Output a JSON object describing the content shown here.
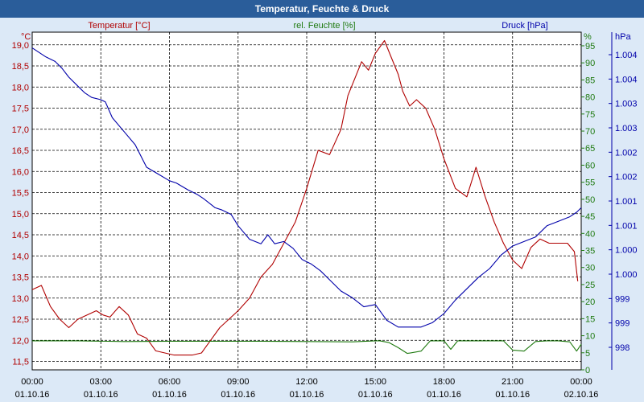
{
  "window": {
    "title": "Temperatur, Feuchte & Druck"
  },
  "colors": {
    "temperature": "#b00000",
    "humidity": "#1f7a10",
    "pressure": "#0000aa",
    "background": "#dce9f7",
    "plot": "#ffffff"
  },
  "chart_data": {
    "type": "line",
    "title": "Temperatur, Feuchte & Druck",
    "legend": [
      "Temperatur [°C]",
      "rel. Feuchte [%]",
      "Druck [hPa]"
    ],
    "axes": {
      "temperature": {
        "unit": "°C",
        "range": [
          11.3,
          19.3
        ],
        "ticks": [
          "11,5",
          "12,0",
          "12,5",
          "13,0",
          "13,5",
          "14,0",
          "14,5",
          "15,0",
          "15,5",
          "16,0",
          "16,5",
          "17,0",
          "17,5",
          "18,0",
          "18,5",
          "19,0"
        ]
      },
      "humidity": {
        "unit": "%",
        "range": [
          0,
          99
        ],
        "ticks": [
          "0",
          "5",
          "10",
          "15",
          "20",
          "25",
          "30",
          "35",
          "40",
          "45",
          "50",
          "55",
          "60",
          "65",
          "70",
          "75",
          "80",
          "85",
          "90",
          "95"
        ]
      },
      "pressure": {
        "unit": "hPa",
        "range": [
          997.5,
          1005.0
        ],
        "ticks": [
          "998",
          "999",
          "999",
          "1.000",
          "1.000",
          "1.001",
          "1.001",
          "1.002",
          "1.002",
          "1.003",
          "1.003",
          "1.004",
          "1.004"
        ]
      }
    },
    "x_ticks": [
      {
        "time": "00:00",
        "date": "01.10.16"
      },
      {
        "time": "03:00",
        "date": "01.10.16"
      },
      {
        "time": "06:00",
        "date": "01.10.16"
      },
      {
        "time": "09:00",
        "date": "01.10.16"
      },
      {
        "time": "12:00",
        "date": "01.10.16"
      },
      {
        "time": "15:00",
        "date": "01.10.16"
      },
      {
        "time": "18:00",
        "date": "01.10.16"
      },
      {
        "time": "21:00",
        "date": "01.10.16"
      },
      {
        "time": "00:00",
        "date": "02.10.16"
      }
    ],
    "x_range_hours": [
      0,
      24
    ],
    "series": [
      {
        "name": "Temperatur [°C]",
        "axis": "temperature",
        "x": [
          0,
          0.4,
          0.8,
          1.2,
          1.6,
          2.0,
          2.4,
          2.8,
          3.1,
          3.4,
          3.8,
          4.2,
          4.6,
          5.0,
          5.4,
          5.8,
          6.2,
          6.6,
          7.0,
          7.4,
          7.8,
          8.2,
          8.6,
          9.0,
          9.5,
          10.0,
          10.5,
          11.0,
          11.5,
          12.0,
          12.5,
          13.0,
          13.5,
          13.8,
          14.1,
          14.4,
          14.7,
          15.0,
          15.4,
          15.7,
          16.0,
          16.2,
          16.5,
          16.8,
          17.2,
          17.6,
          18.0,
          18.5,
          19.0,
          19.4,
          19.8,
          20.2,
          20.6,
          21.0,
          21.4,
          21.8,
          22.2,
          22.6,
          23.0,
          23.4,
          23.7,
          23.85
        ],
        "values": [
          13.2,
          13.3,
          12.8,
          12.5,
          12.3,
          12.5,
          12.6,
          12.7,
          12.6,
          12.55,
          12.8,
          12.6,
          12.15,
          12.05,
          11.75,
          11.7,
          11.65,
          11.65,
          11.65,
          11.7,
          12.0,
          12.3,
          12.5,
          12.7,
          13.0,
          13.5,
          13.8,
          14.3,
          14.8,
          15.6,
          16.5,
          16.4,
          17.0,
          17.8,
          18.2,
          18.6,
          18.4,
          18.8,
          19.1,
          18.7,
          18.3,
          17.9,
          17.55,
          17.7,
          17.5,
          17.0,
          16.3,
          15.6,
          15.4,
          16.1,
          15.4,
          14.8,
          14.3,
          13.9,
          13.7,
          14.2,
          14.4,
          14.3,
          14.3,
          14.3,
          14.1,
          13.4
        ]
      },
      {
        "name": "rel. Feuchte [%]",
        "axis": "humidity",
        "x": [
          0,
          2,
          4,
          6,
          8,
          10,
          12,
          14,
          15,
          15.2,
          15.6,
          16.0,
          16.4,
          17.0,
          17.4,
          17.7,
          18.0,
          18.3,
          18.6,
          19.0,
          20,
          20.6,
          21.0,
          21.5,
          22,
          22.5,
          23.0,
          23.5,
          23.8,
          24
        ],
        "values": [
          8.5,
          8.5,
          8.3,
          8.4,
          8.4,
          8.4,
          8.3,
          8.2,
          8.5,
          8.5,
          8.0,
          6.5,
          4.8,
          5.5,
          8.5,
          8.5,
          8.5,
          6.0,
          8.5,
          8.5,
          8.5,
          8.5,
          5.8,
          5.5,
          8.3,
          8.5,
          8.5,
          8.2,
          5.5,
          7.5
        ]
      },
      {
        "name": "Druck [hPa]",
        "axis": "pressure",
        "x": [
          0,
          0.3,
          0.6,
          1.0,
          1.3,
          1.6,
          2.0,
          2.3,
          2.6,
          3.0,
          3.2,
          3.5,
          4.0,
          4.5,
          5.0,
          5.5,
          6.0,
          6.3,
          6.8,
          7.2,
          7.5,
          8.0,
          8.3,
          8.7,
          9.0,
          9.5,
          10.0,
          10.3,
          10.6,
          11.0,
          11.4,
          11.8,
          12.2,
          12.6,
          13.0,
          13.5,
          14.0,
          14.5,
          15.0,
          15.5,
          16.0,
          16.5,
          17.0,
          17.5,
          18.0,
          18.5,
          19.0,
          19.5,
          20.0,
          20.5,
          21.0,
          21.5,
          22.0,
          22.5,
          23.0,
          23.5,
          23.8,
          24.0
        ],
        "values": [
          1004.65,
          1004.55,
          1004.45,
          1004.35,
          1004.2,
          1004.0,
          1003.8,
          1003.65,
          1003.55,
          1003.5,
          1003.45,
          1003.1,
          1002.8,
          1002.5,
          1002.0,
          1001.85,
          1001.7,
          1001.65,
          1001.5,
          1001.4,
          1001.3,
          1001.1,
          1001.05,
          1000.95,
          1000.7,
          1000.4,
          1000.3,
          1000.5,
          1000.3,
          1000.35,
          1000.2,
          999.95,
          999.85,
          999.7,
          999.5,
          999.25,
          999.1,
          998.9,
          998.95,
          998.6,
          998.45,
          998.45,
          998.45,
          998.55,
          998.75,
          999.05,
          999.3,
          999.55,
          999.75,
          1000.05,
          1000.25,
          1000.35,
          1000.45,
          1000.7,
          1000.8,
          1000.9,
          1001.0,
          1001.1
        ]
      }
    ]
  }
}
